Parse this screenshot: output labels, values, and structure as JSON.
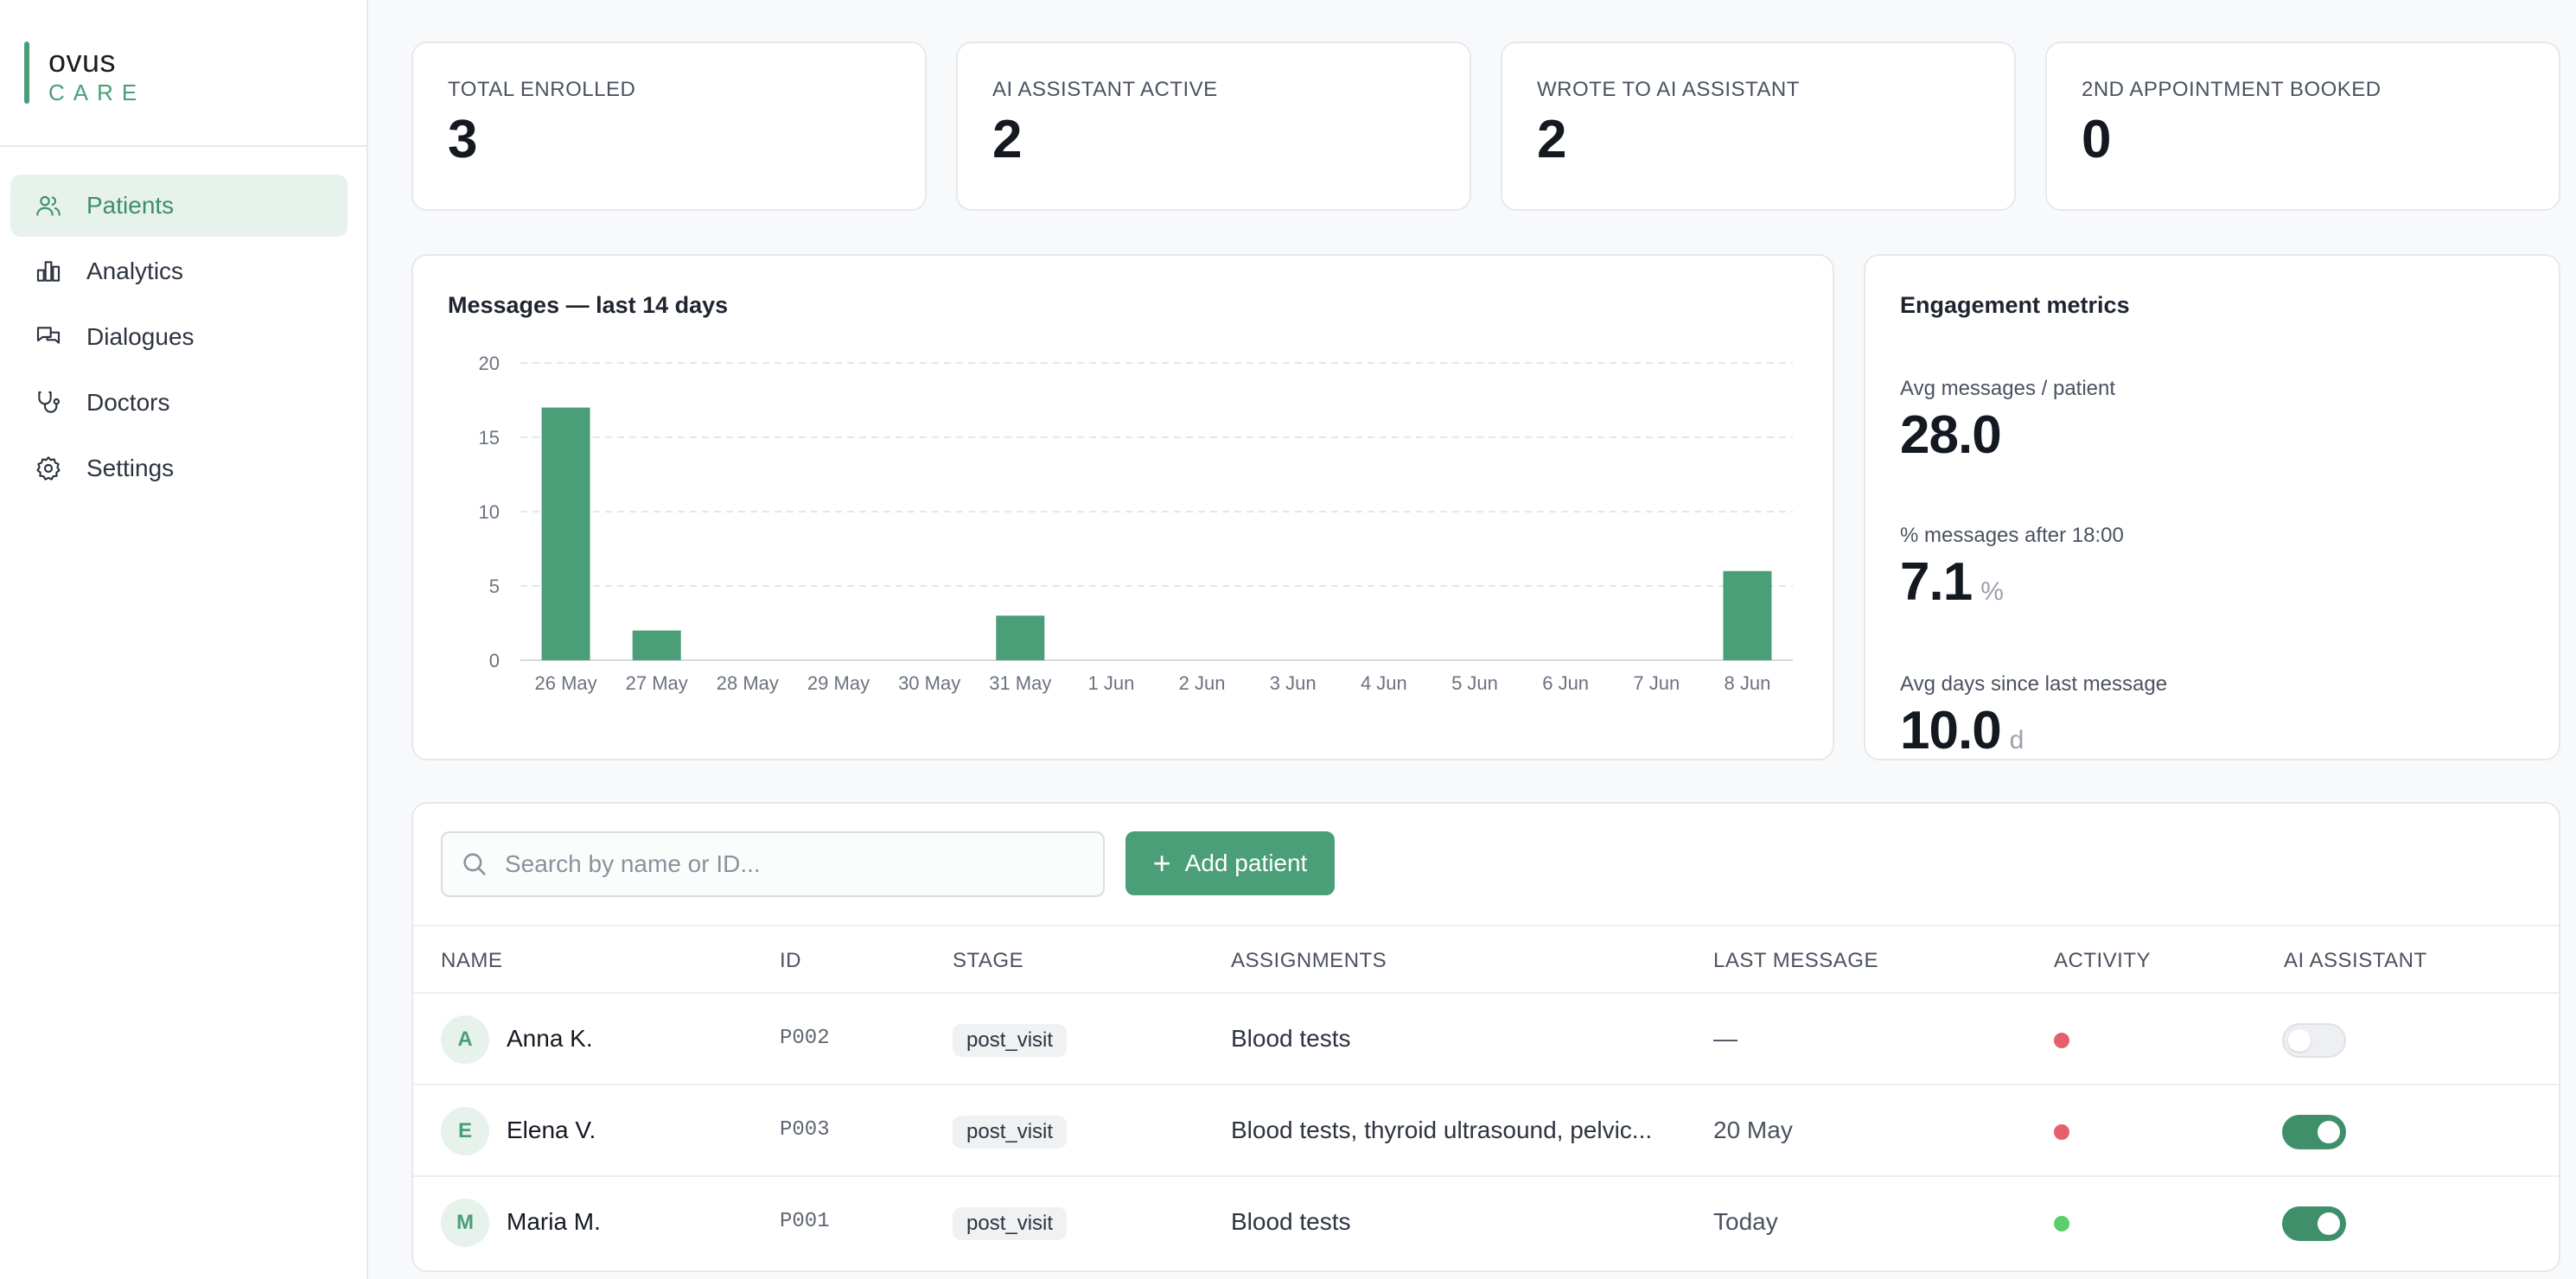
{
  "brand": {
    "name": "ovus",
    "sub": "CARE"
  },
  "nav": [
    {
      "label": "Patients",
      "icon": "users-icon",
      "active": true
    },
    {
      "label": "Analytics",
      "icon": "bar-chart-icon",
      "active": false
    },
    {
      "label": "Dialogues",
      "icon": "chat-icon",
      "active": false
    },
    {
      "label": "Doctors",
      "icon": "stethoscope-icon",
      "active": false
    },
    {
      "label": "Settings",
      "icon": "gear-icon",
      "active": false
    }
  ],
  "stats": [
    {
      "label": "TOTAL ENROLLED",
      "value": "3"
    },
    {
      "label": "AI ASSISTANT ACTIVE",
      "value": "2"
    },
    {
      "label": "WROTE TO AI ASSISTANT",
      "value": "2"
    },
    {
      "label": "2ND APPOINTMENT BOOKED",
      "value": "0"
    }
  ],
  "chart_title": "Messages — last 14 days",
  "chart_data": {
    "type": "bar",
    "title": "Messages — last 14 days",
    "categories": [
      "26 May",
      "27 May",
      "28 May",
      "29 May",
      "30 May",
      "31 May",
      "1 Jun",
      "2 Jun",
      "3 Jun",
      "4 Jun",
      "5 Jun",
      "6 Jun",
      "7 Jun",
      "8 Jun"
    ],
    "values": [
      17,
      2,
      0,
      0,
      0,
      3,
      0,
      0,
      0,
      0,
      0,
      0,
      0,
      6
    ],
    "yticks": [
      0,
      5,
      10,
      15,
      20
    ],
    "ylim": [
      0,
      20
    ],
    "grid": true,
    "bar_color": "#4a9e78"
  },
  "engagement": {
    "title": "Engagement metrics",
    "metrics": [
      {
        "label": "Avg messages / patient",
        "value": "28.0",
        "unit": ""
      },
      {
        "label": "% messages after 18:00",
        "value": "7.1",
        "unit": "%"
      },
      {
        "label": "Avg days since last message",
        "value": "10.0",
        "unit": "d"
      }
    ]
  },
  "search": {
    "placeholder": "Search by name or ID..."
  },
  "add_button": {
    "label": "Add patient"
  },
  "table": {
    "columns": [
      "NAME",
      "ID",
      "STAGE",
      "ASSIGNMENTS",
      "LAST MESSAGE",
      "ACTIVITY",
      "AI ASSISTANT"
    ],
    "rows": [
      {
        "initial": "A",
        "name": "Anna K.",
        "id": "P002",
        "stage": "post_visit",
        "assignments": "Blood tests",
        "last_message": "—",
        "activity": "inactive",
        "activity_color": "#e5606a",
        "ai_on": false
      },
      {
        "initial": "E",
        "name": "Elena V.",
        "id": "P003",
        "stage": "post_visit",
        "assignments": "Blood tests, thyroid ultrasound, pelvic...",
        "last_message": "20 May",
        "activity": "inactive",
        "activity_color": "#e5606a",
        "ai_on": true
      },
      {
        "initial": "M",
        "name": "Maria M.",
        "id": "P001",
        "stage": "post_visit",
        "assignments": "Blood tests",
        "last_message": "Today",
        "activity": "active",
        "activity_color": "#5bd06a",
        "ai_on": true
      }
    ]
  },
  "colors": {
    "accent": "#4a9e78",
    "active_bg": "#e7f2ec"
  }
}
